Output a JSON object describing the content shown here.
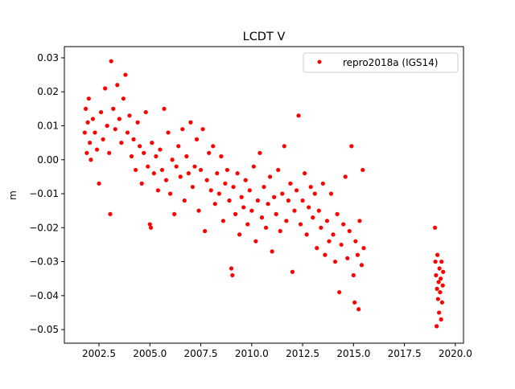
{
  "chart_data": {
    "type": "scatter",
    "title": "LCDT V",
    "xlabel": "",
    "ylabel": "m",
    "xlim": [
      2000.8,
      2020.4
    ],
    "ylim": [
      -0.054,
      0.0333
    ],
    "xticks": [
      2002.5,
      2005.0,
      2007.5,
      2010.0,
      2012.5,
      2015.0,
      2017.5,
      2020.0
    ],
    "xtick_labels": [
      "2002.5",
      "2005.0",
      "2007.5",
      "2010.0",
      "2012.5",
      "2015.0",
      "2017.5",
      "2020.0"
    ],
    "yticks": [
      0.03,
      0.02,
      0.01,
      0.0,
      -0.01,
      -0.02,
      -0.03,
      -0.04,
      -0.05
    ],
    "ytick_labels": [
      "0.03",
      "0.02",
      "0.01",
      "0.00",
      "−0.01",
      "−0.02",
      "−0.03",
      "−0.04",
      "−0.05"
    ],
    "grid": false,
    "legend_position": "top-right",
    "series": [
      {
        "name": "repro2018a (IGS14)",
        "color": "#ff0000",
        "marker": "o",
        "points": [
          [
            2001.8,
            0.008
          ],
          [
            2001.85,
            0.015
          ],
          [
            2001.9,
            0.002
          ],
          [
            2001.95,
            0.011
          ],
          [
            2002.0,
            0.018
          ],
          [
            2002.05,
            0.005
          ],
          [
            2002.1,
            0.0
          ],
          [
            2002.2,
            0.012
          ],
          [
            2002.3,
            0.008
          ],
          [
            2002.4,
            0.003
          ],
          [
            2002.5,
            -0.007
          ],
          [
            2002.6,
            0.014
          ],
          [
            2002.7,
            0.006
          ],
          [
            2002.8,
            0.021
          ],
          [
            2002.9,
            0.01
          ],
          [
            2003.0,
            0.002
          ],
          [
            2003.05,
            -0.016
          ],
          [
            2003.1,
            0.029
          ],
          [
            2003.2,
            0.015
          ],
          [
            2003.3,
            0.009
          ],
          [
            2003.4,
            0.022
          ],
          [
            2003.5,
            0.012
          ],
          [
            2003.6,
            0.005
          ],
          [
            2003.7,
            0.018
          ],
          [
            2003.8,
            0.025
          ],
          [
            2003.9,
            0.008
          ],
          [
            2004.0,
            0.013
          ],
          [
            2004.1,
            0.001
          ],
          [
            2004.2,
            0.006
          ],
          [
            2004.3,
            -0.003
          ],
          [
            2004.4,
            0.011
          ],
          [
            2004.5,
            0.004
          ],
          [
            2004.6,
            -0.007
          ],
          [
            2004.7,
            0.002
          ],
          [
            2004.8,
            0.014
          ],
          [
            2004.9,
            -0.002
          ],
          [
            2005.0,
            -0.019
          ],
          [
            2005.05,
            -0.02
          ],
          [
            2005.1,
            0.005
          ],
          [
            2005.2,
            -0.004
          ],
          [
            2005.3,
            0.001
          ],
          [
            2005.4,
            -0.009
          ],
          [
            2005.5,
            0.003
          ],
          [
            2005.6,
            -0.003
          ],
          [
            2005.7,
            0.015
          ],
          [
            2005.8,
            -0.006
          ],
          [
            2005.9,
            0.008
          ],
          [
            2006.0,
            -0.01
          ],
          [
            2006.1,
            0.0
          ],
          [
            2006.2,
            -0.016
          ],
          [
            2006.3,
            -0.002
          ],
          [
            2006.4,
            0.004
          ],
          [
            2006.5,
            -0.005
          ],
          [
            2006.6,
            0.009
          ],
          [
            2006.7,
            -0.012
          ],
          [
            2006.8,
            0.001
          ],
          [
            2006.9,
            -0.004
          ],
          [
            2007.0,
            0.011
          ],
          [
            2007.1,
            -0.008
          ],
          [
            2007.2,
            -0.002
          ],
          [
            2007.3,
            0.006
          ],
          [
            2007.4,
            -0.015
          ],
          [
            2007.5,
            -0.003
          ],
          [
            2007.6,
            0.009
          ],
          [
            2007.7,
            -0.021
          ],
          [
            2007.8,
            -0.006
          ],
          [
            2007.9,
            0.002
          ],
          [
            2008.0,
            -0.009
          ],
          [
            2008.1,
            0.004
          ],
          [
            2008.2,
            -0.013
          ],
          [
            2008.3,
            -0.004
          ],
          [
            2008.4,
            -0.01
          ],
          [
            2008.5,
            0.001
          ],
          [
            2008.6,
            -0.018
          ],
          [
            2008.7,
            -0.007
          ],
          [
            2008.8,
            -0.003
          ],
          [
            2008.9,
            -0.012
          ],
          [
            2009.0,
            -0.032
          ],
          [
            2009.05,
            -0.034
          ],
          [
            2009.1,
            -0.008
          ],
          [
            2009.2,
            -0.016
          ],
          [
            2009.3,
            -0.004
          ],
          [
            2009.4,
            -0.022
          ],
          [
            2009.5,
            -0.011
          ],
          [
            2009.6,
            -0.014
          ],
          [
            2009.7,
            -0.006
          ],
          [
            2009.8,
            -0.019
          ],
          [
            2009.9,
            -0.009
          ],
          [
            2010.0,
            -0.015
          ],
          [
            2010.1,
            -0.002
          ],
          [
            2010.2,
            -0.024
          ],
          [
            2010.3,
            -0.012
          ],
          [
            2010.4,
            0.002
          ],
          [
            2010.5,
            -0.017
          ],
          [
            2010.6,
            -0.008
          ],
          [
            2010.7,
            -0.02
          ],
          [
            2010.8,
            -0.013
          ],
          [
            2010.9,
            -0.005
          ],
          [
            2011.0,
            -0.027
          ],
          [
            2011.1,
            -0.011
          ],
          [
            2011.2,
            -0.016
          ],
          [
            2011.3,
            -0.003
          ],
          [
            2011.4,
            -0.021
          ],
          [
            2011.5,
            -0.01
          ],
          [
            2011.6,
            0.004
          ],
          [
            2011.7,
            -0.018
          ],
          [
            2011.8,
            -0.012
          ],
          [
            2011.9,
            -0.007
          ],
          [
            2012.0,
            -0.033
          ],
          [
            2012.1,
            -0.015
          ],
          [
            2012.2,
            -0.009
          ],
          [
            2012.3,
            0.013
          ],
          [
            2012.4,
            -0.019
          ],
          [
            2012.5,
            -0.012
          ],
          [
            2012.6,
            -0.004
          ],
          [
            2012.7,
            -0.022
          ],
          [
            2012.8,
            -0.014
          ],
          [
            2012.9,
            -0.008
          ],
          [
            2013.0,
            -0.017
          ],
          [
            2013.1,
            -0.01
          ],
          [
            2013.2,
            -0.026
          ],
          [
            2013.3,
            -0.015
          ],
          [
            2013.4,
            -0.02
          ],
          [
            2013.5,
            -0.007
          ],
          [
            2013.6,
            -0.028
          ],
          [
            2013.7,
            -0.018
          ],
          [
            2013.8,
            -0.024
          ],
          [
            2013.9,
            -0.01
          ],
          [
            2014.0,
            -0.022
          ],
          [
            2014.1,
            -0.03
          ],
          [
            2014.2,
            -0.016
          ],
          [
            2014.3,
            -0.039
          ],
          [
            2014.4,
            -0.025
          ],
          [
            2014.5,
            -0.019
          ],
          [
            2014.6,
            -0.005
          ],
          [
            2014.7,
            -0.029
          ],
          [
            2014.8,
            -0.021
          ],
          [
            2014.9,
            0.004
          ],
          [
            2015.0,
            -0.034
          ],
          [
            2015.05,
            -0.042
          ],
          [
            2015.1,
            -0.024
          ],
          [
            2015.2,
            -0.028
          ],
          [
            2015.25,
            -0.044
          ],
          [
            2015.3,
            -0.018
          ],
          [
            2015.4,
            -0.031
          ],
          [
            2015.45,
            -0.003
          ],
          [
            2015.5,
            -0.026
          ],
          [
            2019.0,
            -0.02
          ],
          [
            2019.02,
            -0.03
          ],
          [
            2019.05,
            -0.034
          ],
          [
            2019.08,
            -0.049
          ],
          [
            2019.1,
            -0.038
          ],
          [
            2019.12,
            -0.028
          ],
          [
            2019.15,
            -0.041
          ],
          [
            2019.18,
            -0.036
          ],
          [
            2019.2,
            -0.045
          ],
          [
            2019.22,
            -0.032
          ],
          [
            2019.25,
            -0.039
          ],
          [
            2019.28,
            -0.035
          ],
          [
            2019.3,
            -0.047
          ],
          [
            2019.32,
            -0.03
          ],
          [
            2019.35,
            -0.042
          ],
          [
            2019.38,
            -0.037
          ],
          [
            2019.4,
            -0.033
          ]
        ]
      }
    ]
  }
}
